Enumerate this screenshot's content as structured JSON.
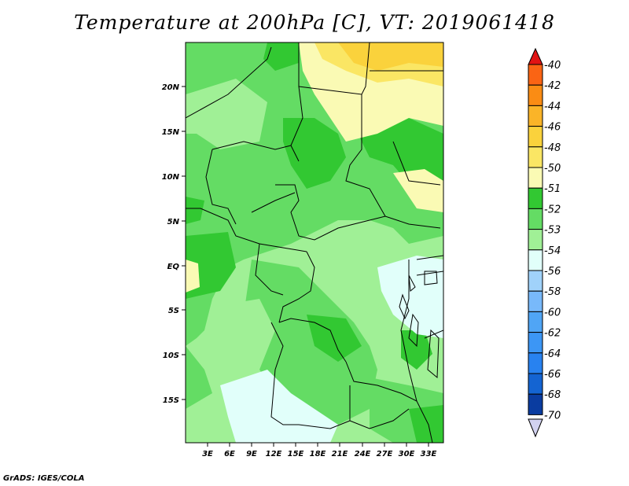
{
  "title": "Temperature at 200hPa [C], VT: 2019061418",
  "credit": "GrADS: IGES/COLA",
  "map": {
    "lat_labels": [
      "20N",
      "15N",
      "10N",
      "5N",
      "EQ",
      "5S",
      "10S",
      "15S"
    ],
    "lon_labels": [
      "3E",
      "6E",
      "9E",
      "12E",
      "15E",
      "18E",
      "21E",
      "24E",
      "27E",
      "30E",
      "33E"
    ]
  },
  "colorbar": {
    "levels": [
      {
        "label": "-40",
        "color": "#f03c14"
      },
      {
        "label": "-42",
        "color": "#fa6414"
      },
      {
        "label": "-44",
        "color": "#fa8c14"
      },
      {
        "label": "-46",
        "color": "#fab428"
      },
      {
        "label": "-48",
        "color": "#fad23c"
      },
      {
        "label": "-50",
        "color": "#fae664"
      },
      {
        "label": "-51",
        "color": "#fafab4"
      },
      {
        "label": "-52",
        "color": "#32c832"
      },
      {
        "label": "-53",
        "color": "#64dc64"
      },
      {
        "label": "-54",
        "color": "#a0f096"
      },
      {
        "label": "-56",
        "color": "#e1fffa"
      },
      {
        "label": "-58",
        "color": "#a0d2fa"
      },
      {
        "label": "-60",
        "color": "#78b9fa"
      },
      {
        "label": "-62",
        "color": "#50a5f5"
      },
      {
        "label": "-64",
        "color": "#3c96f5"
      },
      {
        "label": "-66",
        "color": "#2882f0"
      },
      {
        "label": "-68",
        "color": "#1464d2"
      },
      {
        "label": "-70",
        "color": "#0a3ca0"
      }
    ],
    "top_color": "#e11414",
    "bottom_color": "#000a6e",
    "bottom_tip_color": "#d2d2f0"
  }
}
